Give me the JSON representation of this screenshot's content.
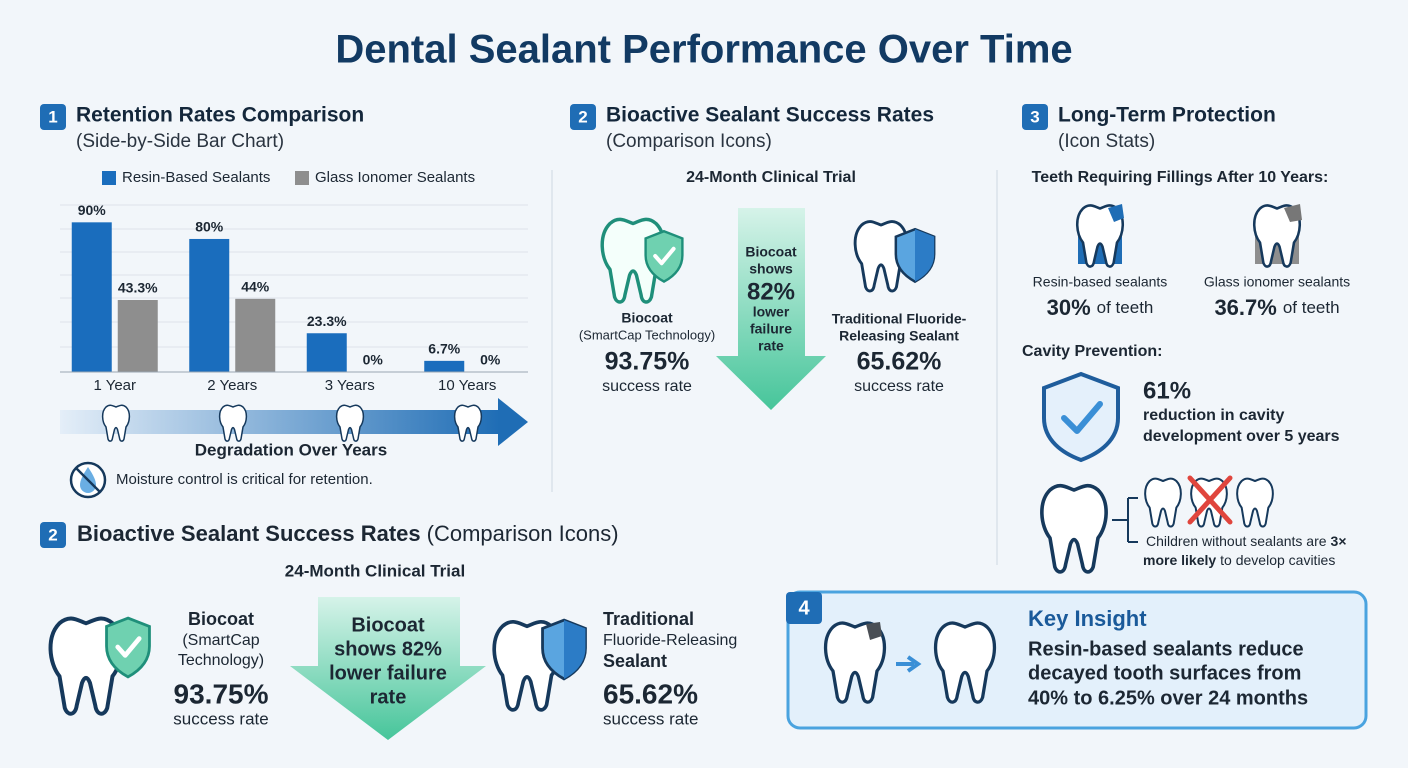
{
  "title": "Dental Sealant Performance Over Time",
  "retention": {
    "number": "1",
    "annotation": "Degradation Over Years",
    "note": "Moisture control is critical for retention."
  },
  "chart_data": {
    "type": "bar",
    "title": "Retention Rates Comparison",
    "subtitle": "(Side-by-Side Bar Chart)",
    "categories": [
      "1 Year",
      "2 Years",
      "3 Years",
      "10 Years"
    ],
    "series": [
      {
        "name": "Resin-Based Sealants",
        "color": "#1a6dbd",
        "values": [
          90,
          80,
          23.3,
          6.7
        ],
        "value_labels": [
          "90%",
          "80%",
          "23.3%",
          "6.7%"
        ]
      },
      {
        "name": "Glass Ionomer Sealants",
        "color": "#8e8e8e",
        "values": [
          43.3,
          44,
          0,
          0
        ],
        "value_labels": [
          "43.3%",
          "44%",
          "0%",
          "0%"
        ]
      }
    ],
    "ylim": [
      0,
      100
    ],
    "legend": "top"
  },
  "bioactive": {
    "number": "2",
    "title": "Bioactive Sealant Success Rates",
    "subtitle": "(Comparison Icons)",
    "trial": "24-Month Clinical Trial",
    "biocoat": {
      "name": "Biocoat",
      "tech": "(SmartCap Technology)",
      "rate": "93.75%",
      "rate_label": "success rate"
    },
    "arrow_lines": [
      "Biocoat",
      "shows",
      "82%",
      "lower",
      "failure",
      "rate"
    ],
    "traditional": {
      "name_lines": [
        "Traditional Fluoride-",
        "Releasing Sealant"
      ],
      "rate": "65.62%",
      "rate_label": "success rate"
    }
  },
  "longterm": {
    "number": "3",
    "title": "Long-Term Protection",
    "subtitle": "(Icon Stats)",
    "fillings_heading": "Teeth Requiring Fillings After 10 Years:",
    "resin": {
      "label": "Resin-based sealants",
      "value": "30%",
      "unit": "of teeth"
    },
    "glass": {
      "label": "Glass ionomer sealants",
      "value": "36.7%",
      "unit": "of teeth"
    },
    "cavity_heading": "Cavity Prevention:",
    "reduction": "61%",
    "reduction_lines": [
      "reduction in cavity",
      "development over 5 years"
    ],
    "children": {
      "line1": "Children without sealants are",
      "emph1": "3×",
      "emph2": "more likely",
      "line2": "to develop cavities"
    }
  },
  "bioactive_repeat": {
    "number": "2",
    "title": "Bioactive Sealant Success Rates",
    "subtitle": "(Comparison Icons)",
    "trial": "24-Month Clinical Trial",
    "biocoat": {
      "name": "Biocoat",
      "tech_lines": [
        "(SmartCap",
        "Technology)"
      ],
      "rate": "93.75%",
      "rate_label": "success rate"
    },
    "arrow_lines": [
      "Biocoat",
      "shows 82%",
      "lower failure",
      "rate"
    ],
    "traditional": {
      "name_lines": [
        "Traditional",
        "Fluoride-Releasing",
        "Sealant"
      ],
      "rate": "65.62%",
      "rate_label": "success rate"
    }
  },
  "insight": {
    "number": "4",
    "title": "Key Insight",
    "lines": [
      "Resin-based sealants reduce",
      "decayed tooth surfaces from",
      "40% to 6.25% over 24 months"
    ]
  }
}
